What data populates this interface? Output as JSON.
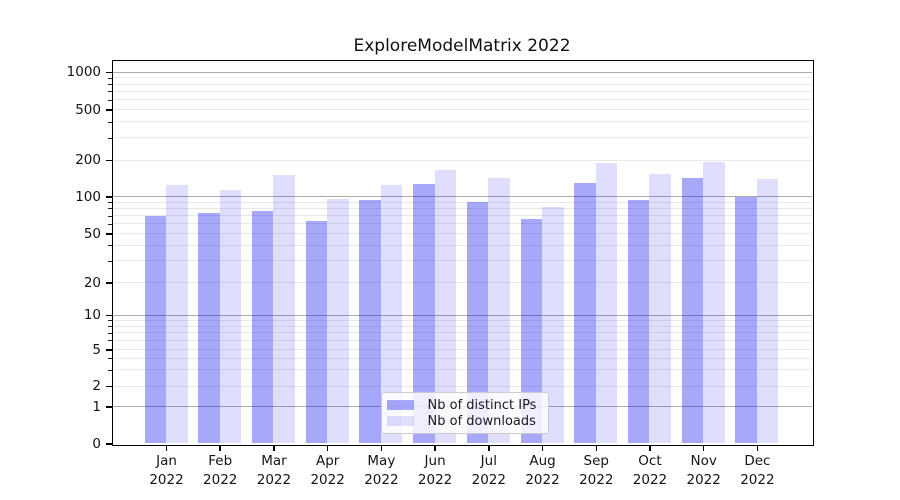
{
  "chart_data": {
    "type": "bar",
    "title": "ExploreModelMatrix 2022",
    "year": "2022",
    "months": [
      "Jan",
      "Feb",
      "Mar",
      "Apr",
      "May",
      "Jun",
      "Jul",
      "Aug",
      "Sep",
      "Oct",
      "Nov",
      "Dec"
    ],
    "categories": [
      "Jan 2022",
      "Feb 2022",
      "Mar 2022",
      "Apr 2022",
      "May 2022",
      "Jun 2022",
      "Jul 2022",
      "Aug 2022",
      "Sep 2022",
      "Oct 2022",
      "Nov 2022",
      "Dec 2022"
    ],
    "series": [
      {
        "name": "Nb of distinct IPs",
        "color": "rgba(15,15,242,0.36)",
        "values": [
          70,
          73,
          76,
          63,
          94,
          127,
          90,
          66,
          129,
          93,
          141,
          99
        ]
      },
      {
        "name": "Nb of downloads",
        "color": "rgba(15,15,242,0.135)",
        "values": [
          125,
          114,
          150,
          96,
          125,
          165,
          142,
          82,
          189,
          153,
          194,
          140
        ]
      }
    ],
    "yscale": "symlog",
    "y_ticks": [
      0,
      1,
      2,
      5,
      10,
      20,
      50,
      100,
      200,
      500,
      1000
    ],
    "ylim": [
      0,
      1300
    ],
    "xlabel": "",
    "ylabel": "",
    "grid": true,
    "legend_position": "lower center"
  },
  "colors": {
    "bar_distinct_ips": "rgba(15,15,242,0.36)",
    "bar_downloads": "rgba(15,15,242,0.135)",
    "grid_major": "#ababab",
    "grid_minor": "#e9e9e9",
    "spine": "#000000",
    "text": "#151515",
    "legend_bg": "rgba(255,255,255,0.8)",
    "legend_border": "#cccccc"
  }
}
